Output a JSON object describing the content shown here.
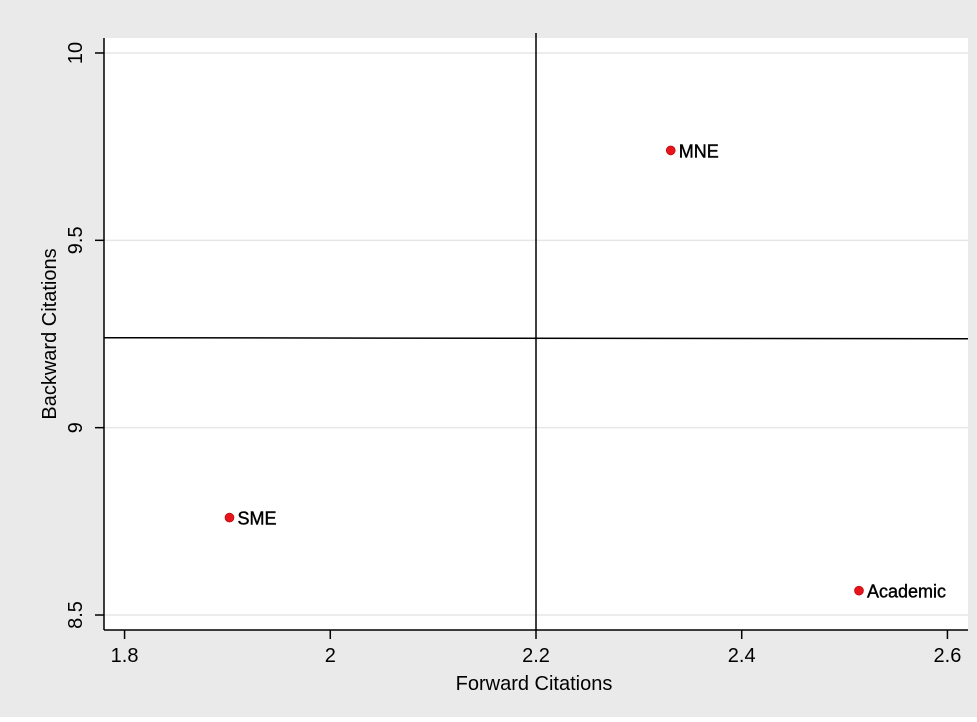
{
  "chart_data": {
    "type": "scatter",
    "title": "",
    "xlabel": "Forward Citations",
    "ylabel": "Backward Citations",
    "xlim": [
      1.78,
      2.62
    ],
    "ylim": [
      8.46,
      10.04
    ],
    "x_ticks": [
      1.8,
      2,
      2.2,
      2.4,
      2.6
    ],
    "x_tick_labels": [
      "1.8",
      "2",
      "2.2",
      "2.4",
      "2.6"
    ],
    "y_ticks": [
      8.5,
      9,
      9.5,
      10
    ],
    "y_tick_labels": [
      "8.5",
      "9",
      "9.5",
      "10"
    ],
    "grid": "horizontal",
    "legend": "none",
    "points": [
      {
        "label": "MNE",
        "x": 2.331,
        "y": 9.74
      },
      {
        "label": "SME",
        "x": 1.902,
        "y": 8.76
      },
      {
        "label": "Academic",
        "x": 2.514,
        "y": 8.565
      }
    ],
    "reference_lines": {
      "vertical": {
        "x": 2.2
      },
      "horizontal": {
        "y": 9.24
      }
    },
    "colors": {
      "outer_background": "#eaeaea",
      "plot_background": "#ffffff",
      "grid": "#e6e6e6",
      "marker": "#e8141b",
      "line": "#000000",
      "text": "#000000"
    }
  }
}
